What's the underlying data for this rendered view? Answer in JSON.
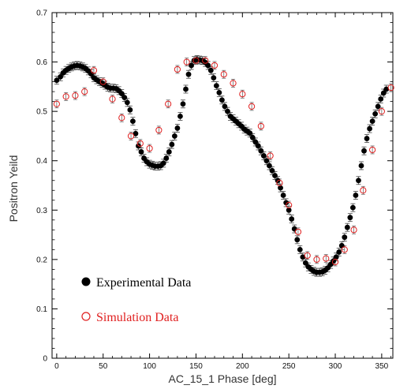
{
  "chart_data": {
    "type": "scatter",
    "xlabel": "AC_15_1 Phase [deg]",
    "ylabel": "Positron Yeild",
    "xlim": [
      -5,
      362
    ],
    "ylim": [
      0,
      0.7
    ],
    "xticks": [
      "0",
      "50",
      "100",
      "150",
      "200",
      "250",
      "300",
      "350"
    ],
    "yticks": [
      "0",
      "0.1",
      "0.2",
      "0.3",
      "0.4",
      "0.5",
      "0.6",
      "0.7"
    ],
    "grid": false,
    "legend_position": "bottom-left",
    "series": [
      {
        "name": "Experimental Data",
        "marker": "filled-circle",
        "color": "#000000",
        "x": [
          0,
          4,
          7,
          10,
          13,
          16,
          19,
          22,
          25,
          28,
          31,
          34,
          37,
          40,
          43,
          46,
          49,
          52,
          55,
          58,
          61,
          64,
          67,
          70,
          73,
          76,
          79,
          82,
          85,
          88,
          91,
          94,
          97,
          100,
          103,
          106,
          109,
          112,
          115,
          118,
          121,
          124,
          127,
          130,
          133,
          136,
          139,
          142,
          145,
          148,
          151,
          154,
          157,
          160,
          163,
          166,
          169,
          172,
          175,
          178,
          181,
          184,
          187,
          190,
          193,
          196,
          199,
          202,
          205,
          208,
          211,
          214,
          217,
          220,
          223,
          226,
          229,
          232,
          235,
          238,
          241,
          244,
          247,
          250,
          253,
          256,
          259,
          262,
          265,
          268,
          271,
          274,
          277,
          280,
          283,
          286,
          289,
          292,
          295,
          298,
          301,
          304,
          307,
          310,
          313,
          316,
          319,
          322,
          325,
          328,
          331,
          334,
          337,
          340,
          343,
          346,
          349,
          352,
          355
        ],
        "y": [
          0.563,
          0.57,
          0.578,
          0.583,
          0.587,
          0.59,
          0.592,
          0.593,
          0.592,
          0.59,
          0.587,
          0.582,
          0.576,
          0.568,
          0.564,
          0.56,
          0.557,
          0.553,
          0.549,
          0.547,
          0.547,
          0.546,
          0.542,
          0.536,
          0.528,
          0.518,
          0.503,
          0.48,
          0.455,
          0.43,
          0.418,
          0.405,
          0.398,
          0.393,
          0.391,
          0.389,
          0.389,
          0.39,
          0.395,
          0.405,
          0.418,
          0.433,
          0.45,
          0.466,
          0.49,
          0.515,
          0.545,
          0.575,
          0.593,
          0.603,
          0.605,
          0.604,
          0.603,
          0.599,
          0.593,
          0.583,
          0.568,
          0.552,
          0.538,
          0.523,
          0.51,
          0.5,
          0.49,
          0.485,
          0.48,
          0.475,
          0.47,
          0.464,
          0.46,
          0.456,
          0.447,
          0.438,
          0.43,
          0.42,
          0.41,
          0.4,
          0.39,
          0.38,
          0.37,
          0.36,
          0.345,
          0.33,
          0.315,
          0.3,
          0.282,
          0.262,
          0.24,
          0.22,
          0.205,
          0.193,
          0.185,
          0.18,
          0.176,
          0.174,
          0.174,
          0.175,
          0.178,
          0.183,
          0.19,
          0.197,
          0.205,
          0.215,
          0.228,
          0.245,
          0.265,
          0.285,
          0.305,
          0.33,
          0.36,
          0.39,
          0.42,
          0.445,
          0.465,
          0.48,
          0.495,
          0.51,
          0.525,
          0.537,
          0.545
        ]
      },
      {
        "name": "Simulation Data",
        "marker": "open-circle",
        "color": "#e02020",
        "x": [
          0,
          10,
          20,
          30,
          40,
          50,
          60,
          70,
          80,
          90,
          100,
          110,
          120,
          130,
          140,
          150,
          160,
          170,
          180,
          190,
          200,
          210,
          220,
          230,
          240,
          250,
          260,
          270,
          280,
          290,
          300,
          310,
          320,
          330,
          340,
          350,
          360
        ],
        "y": [
          0.515,
          0.53,
          0.532,
          0.54,
          0.583,
          0.56,
          0.525,
          0.487,
          0.45,
          0.435,
          0.425,
          0.462,
          0.515,
          0.585,
          0.6,
          0.603,
          0.603,
          0.593,
          0.575,
          0.557,
          0.535,
          0.51,
          0.47,
          0.41,
          0.355,
          0.31,
          0.256,
          0.208,
          0.2,
          0.202,
          0.195,
          0.22,
          0.26,
          0.34,
          0.422,
          0.5,
          0.548
        ]
      }
    ]
  }
}
